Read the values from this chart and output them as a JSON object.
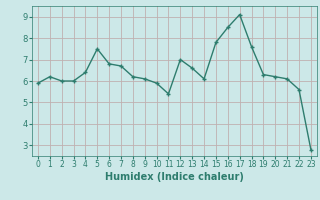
{
  "x_vals": [
    0,
    1,
    2,
    3,
    4,
    5,
    6,
    7,
    8,
    9,
    10,
    11,
    12,
    13,
    14,
    15,
    16,
    17,
    18,
    19,
    20,
    21,
    22,
    23
  ],
  "y_vals": [
    5.9,
    6.2,
    6.0,
    6.0,
    6.4,
    7.5,
    6.8,
    6.7,
    6.2,
    6.1,
    5.9,
    5.4,
    7.0,
    6.6,
    6.1,
    7.8,
    8.5,
    9.1,
    7.6,
    6.3,
    6.2,
    6.1,
    5.6,
    2.8
  ],
  "xlabel": "Humidex (Indice chaleur)",
  "xlim": [
    -0.5,
    23.5
  ],
  "ylim": [
    2.5,
    9.5
  ],
  "yticks": [
    3,
    4,
    5,
    6,
    7,
    8,
    9
  ],
  "xtick_labels": [
    "0",
    "1",
    "2",
    "3",
    "4",
    "5",
    "6",
    "7",
    "8",
    "9",
    "10",
    "11",
    "12",
    "13",
    "14",
    "15",
    "16",
    "17",
    "18",
    "19",
    "20",
    "21",
    "22",
    "23"
  ],
  "line_color": "#2e7d6e",
  "marker": "+",
  "bg_color": "#cce8e8",
  "grid_color": "#c0b0b0",
  "label_fontsize": 7,
  "tick_fontsize": 5.5,
  "linewidth": 1.0,
  "markersize": 3.5
}
